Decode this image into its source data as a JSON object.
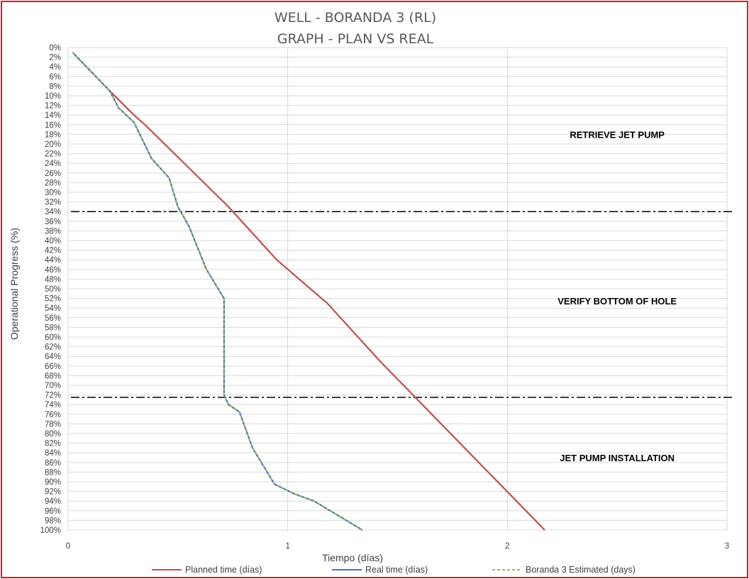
{
  "chart_data": {
    "type": "line",
    "title": "WELL -  BORANDA 3 (RL)",
    "subtitle": "GRAPH  - PLAN VS REAL",
    "xlabel": "Tiempo (días)",
    "ylabel": "Operational Progress (%)",
    "xlim": [
      0,
      3
    ],
    "ylim": [
      0,
      100
    ],
    "y_inverted": true,
    "x_ticks": [
      "0",
      "1",
      "2",
      "3"
    ],
    "y_ticks": [
      "0%",
      "2%",
      "4%",
      "6%",
      "8%",
      "10%",
      "12%",
      "14%",
      "16%",
      "18%",
      "20%",
      "22%",
      "24%",
      "26%",
      "28%",
      "30%",
      "32%",
      "34%",
      "36%",
      "38%",
      "40%",
      "42%",
      "44%",
      "46%",
      "48%",
      "50%",
      "52%",
      "54%",
      "56%",
      "58%",
      "60%",
      "62%",
      "64%",
      "66%",
      "68%",
      "70%",
      "72%",
      "74%",
      "76%",
      "78%",
      "80%",
      "82%",
      "84%",
      "86%",
      "88%",
      "90%",
      "92%",
      "94%",
      "96%",
      "98%",
      "100%"
    ],
    "grid": true,
    "legend_position": "bottom",
    "series": [
      {
        "name": "Planned time (días)",
        "color": "#c0504d",
        "style": "solid",
        "points": [
          [
            0.02,
            1
          ],
          [
            0.19,
            9
          ],
          [
            0.3,
            14
          ],
          [
            0.35,
            16
          ],
          [
            0.73,
            33
          ],
          [
            0.95,
            44
          ],
          [
            1.18,
            53
          ],
          [
            1.42,
            65
          ],
          [
            2.17,
            100
          ]
        ]
      },
      {
        "name": "Real time (días)",
        "color": "#4472c4",
        "style": "solid",
        "points": [
          [
            0.02,
            1
          ],
          [
            0.19,
            9
          ],
          [
            0.23,
            12.5
          ],
          [
            0.3,
            15.5
          ],
          [
            0.38,
            23
          ],
          [
            0.46,
            27
          ],
          [
            0.5,
            33
          ],
          [
            0.55,
            37
          ],
          [
            0.63,
            46
          ],
          [
            0.71,
            52
          ],
          [
            0.71,
            72
          ],
          [
            0.73,
            74
          ],
          [
            0.78,
            75.5
          ],
          [
            0.84,
            83
          ],
          [
            0.94,
            90.5
          ],
          [
            1.03,
            92.5
          ],
          [
            1.12,
            94
          ],
          [
            1.34,
            100
          ]
        ]
      },
      {
        "name": "Boranda 3 Estimated (days)",
        "color": "#9bbb59",
        "style": "dashed",
        "points": [
          [
            0.02,
            1
          ],
          [
            0.19,
            9
          ],
          [
            0.23,
            12.5
          ],
          [
            0.3,
            15.5
          ],
          [
            0.38,
            23
          ],
          [
            0.46,
            27
          ],
          [
            0.5,
            33
          ],
          [
            0.55,
            37
          ],
          [
            0.63,
            46
          ],
          [
            0.71,
            52
          ],
          [
            0.71,
            72
          ],
          [
            0.73,
            74
          ],
          [
            0.78,
            75.5
          ],
          [
            0.84,
            83
          ],
          [
            0.94,
            90.5
          ],
          [
            1.03,
            92.5
          ],
          [
            1.12,
            94
          ],
          [
            1.34,
            100
          ]
        ]
      }
    ],
    "reference_lines": [
      {
        "y": 34,
        "style": "dash-dot",
        "color": "#000000"
      },
      {
        "y": 72.5,
        "style": "dash-dot",
        "color": "#000000"
      }
    ],
    "annotations": [
      {
        "text": "RETRIEVE JET PUMP",
        "x": 2.5,
        "y": 18
      },
      {
        "text": "VERIFY BOTTOM OF HOLE",
        "x": 2.5,
        "y": 52.5
      },
      {
        "text": "JET PUMP INSTALLATION",
        "x": 2.5,
        "y": 85
      }
    ]
  }
}
